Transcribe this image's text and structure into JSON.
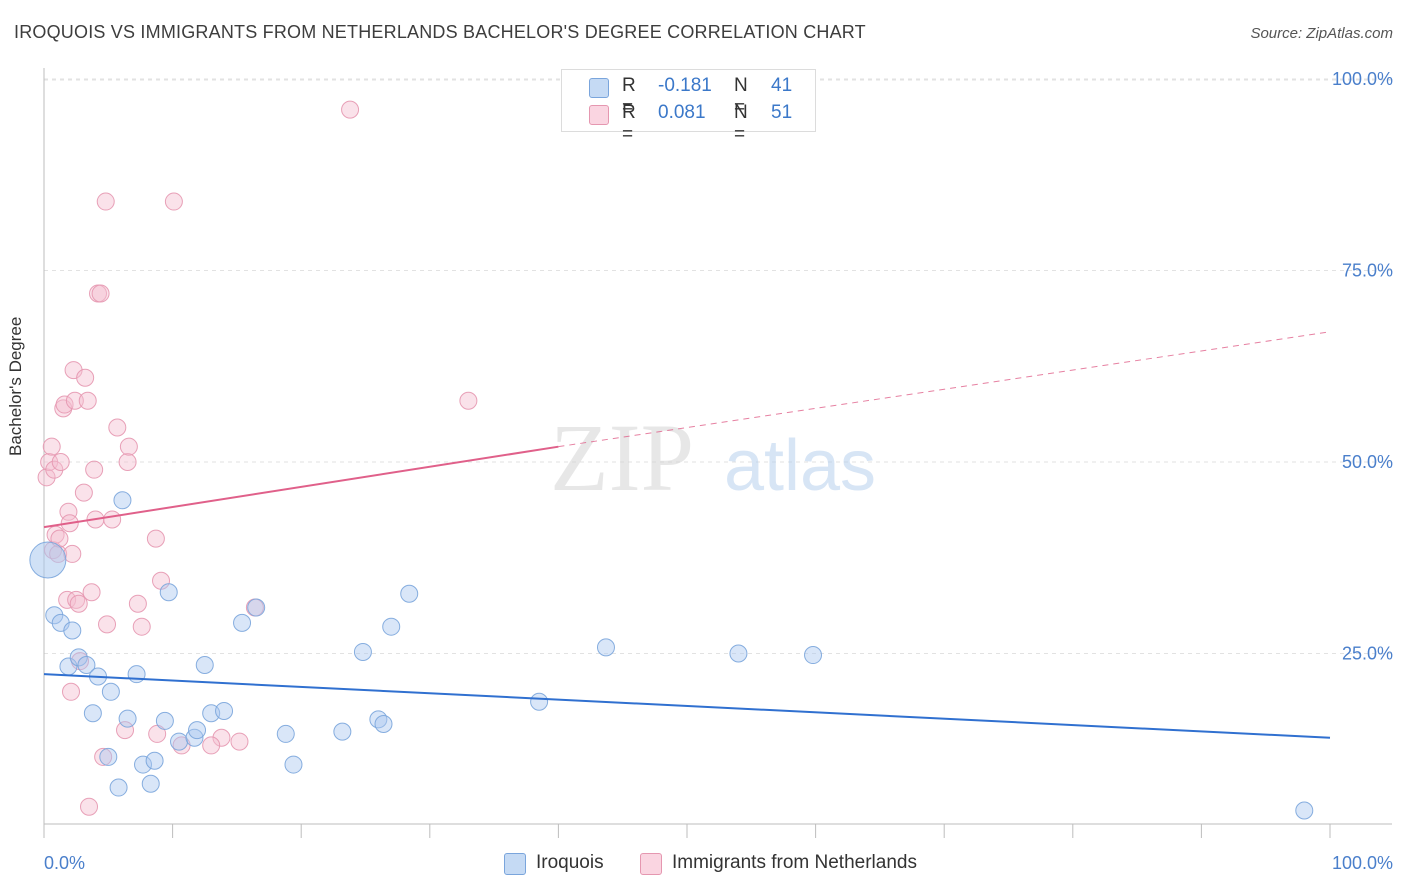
{
  "header": {
    "title": "IROQUOIS VS IMMIGRANTS FROM NETHERLANDS BACHELOR'S DEGREE CORRELATION CHART",
    "source": "Source: ZipAtlas.com"
  },
  "watermark": {
    "zip": "ZIP",
    "atlas": "atlas"
  },
  "legend": {
    "rows": [
      {
        "r_label": "R =",
        "r_value": "-0.181",
        "n_label": "N =",
        "n_value": "41",
        "color": "#aac8ef"
      },
      {
        "r_label": "R =",
        "r_value": "0.081",
        "n_label": "N =",
        "n_value": "51",
        "color": "#f5bfd0"
      }
    ]
  },
  "bottom_legend": [
    {
      "label": "Iroquois",
      "color": "#aac8ef"
    },
    {
      "label": "Immigrants from Netherlands",
      "color": "#f5bfd0"
    }
  ],
  "colors": {
    "blue_fill": "#aac8ef",
    "blue_stroke": "#7aa5dc",
    "blue_line": "#3070d0",
    "pink_fill": "#f5bfd0",
    "pink_stroke": "#e597b0",
    "pink_line": "#e0608a",
    "axis_label": "#4a7fcb",
    "grid": "#e2e2e2"
  },
  "chart_data": {
    "type": "scatter",
    "title": "IROQUOIS VS IMMIGRANTS FROM NETHERLANDS BACHELOR'S DEGREE CORRELATION CHART",
    "xlabel": "",
    "ylabel": "Bachelor's Degree",
    "xlim": [
      0,
      100
    ],
    "ylim": [
      0,
      100
    ],
    "x_tick_labels": [
      "0.0%",
      "100.0%"
    ],
    "y_tick_labels": [
      {
        "value": 100,
        "label": "100.0%"
      },
      {
        "value": 75,
        "label": "75.0%"
      },
      {
        "value": 50,
        "label": "50.0%"
      },
      {
        "value": 25,
        "label": "25.0%"
      }
    ],
    "grid": true,
    "legend_placement": "top-center",
    "series": [
      {
        "name": "Iroquois",
        "r": -0.181,
        "n": 41,
        "trend": {
          "x": [
            0,
            100
          ],
          "y": [
            22.3,
            14.0
          ],
          "dashed_from": null
        },
        "points": [
          [
            0.3,
            37.2
          ],
          [
            0.8,
            30.0
          ],
          [
            1.3,
            29.0
          ],
          [
            1.9,
            23.3
          ],
          [
            2.2,
            28.0
          ],
          [
            2.7,
            24.5
          ],
          [
            3.3,
            23.5
          ],
          [
            3.8,
            17.2
          ],
          [
            4.2,
            22.0
          ],
          [
            5.0,
            11.5
          ],
          [
            5.2,
            20.0
          ],
          [
            5.8,
            7.5
          ],
          [
            6.1,
            45.0
          ],
          [
            6.5,
            16.5
          ],
          [
            7.2,
            22.3
          ],
          [
            7.7,
            10.5
          ],
          [
            8.3,
            8.0
          ],
          [
            8.6,
            11.0
          ],
          [
            9.4,
            16.2
          ],
          [
            9.7,
            33.0
          ],
          [
            10.5,
            13.5
          ],
          [
            11.7,
            14.0
          ],
          [
            11.9,
            15.0
          ],
          [
            12.5,
            23.5
          ],
          [
            13.0,
            17.2
          ],
          [
            14.0,
            17.5
          ],
          [
            15.4,
            29.0
          ],
          [
            16.5,
            31.0
          ],
          [
            18.8,
            14.5
          ],
          [
            19.4,
            10.5
          ],
          [
            23.2,
            14.8
          ],
          [
            24.8,
            25.2
          ],
          [
            26.0,
            16.4
          ],
          [
            26.4,
            15.8
          ],
          [
            27.0,
            28.5
          ],
          [
            28.4,
            32.8
          ],
          [
            38.5,
            18.7
          ],
          [
            43.7,
            25.8
          ],
          [
            54.0,
            25.0
          ],
          [
            59.8,
            24.8
          ],
          [
            98.0,
            4.5
          ]
        ]
      },
      {
        "name": "Immigrants from Netherlands",
        "r": 0.081,
        "n": 51,
        "trend": {
          "x": [
            0,
            40,
            100
          ],
          "y": [
            41.5,
            52.0,
            67.0
          ],
          "dashed_from": 40
        },
        "points": [
          [
            0.2,
            48.0
          ],
          [
            0.4,
            50.0
          ],
          [
            0.6,
            52.0
          ],
          [
            0.7,
            38.5
          ],
          [
            0.8,
            49.0
          ],
          [
            0.9,
            40.5
          ],
          [
            1.1,
            38.0
          ],
          [
            1.2,
            40.0
          ],
          [
            1.3,
            50.0
          ],
          [
            1.5,
            57.0
          ],
          [
            1.6,
            57.5
          ],
          [
            1.8,
            32.0
          ],
          [
            1.9,
            43.5
          ],
          [
            2.0,
            42.0
          ],
          [
            2.1,
            20.0
          ],
          [
            2.2,
            38.0
          ],
          [
            2.3,
            62.0
          ],
          [
            2.4,
            58.0
          ],
          [
            2.5,
            32.0
          ],
          [
            2.7,
            31.5
          ],
          [
            2.8,
            24.0
          ],
          [
            3.1,
            46.0
          ],
          [
            3.2,
            61.0
          ],
          [
            3.4,
            58.0
          ],
          [
            3.5,
            5.0
          ],
          [
            3.7,
            33.0
          ],
          [
            3.9,
            49.0
          ],
          [
            4.0,
            42.5
          ],
          [
            4.2,
            72.0
          ],
          [
            4.4,
            72.0
          ],
          [
            4.6,
            11.5
          ],
          [
            4.8,
            84.0
          ],
          [
            4.9,
            28.8
          ],
          [
            5.3,
            42.5
          ],
          [
            5.7,
            54.5
          ],
          [
            6.3,
            15.0
          ],
          [
            6.5,
            50.0
          ],
          [
            6.6,
            52.0
          ],
          [
            7.3,
            31.5
          ],
          [
            7.6,
            28.5
          ],
          [
            8.7,
            40.0
          ],
          [
            8.8,
            14.5
          ],
          [
            9.1,
            34.5
          ],
          [
            10.1,
            84.0
          ],
          [
            10.7,
            13.0
          ],
          [
            13.8,
            14.0
          ],
          [
            15.2,
            13.5
          ],
          [
            16.4,
            31.0
          ],
          [
            23.8,
            96.0
          ],
          [
            33.0,
            58.0
          ],
          [
            13.0,
            13.0
          ]
        ]
      }
    ]
  }
}
